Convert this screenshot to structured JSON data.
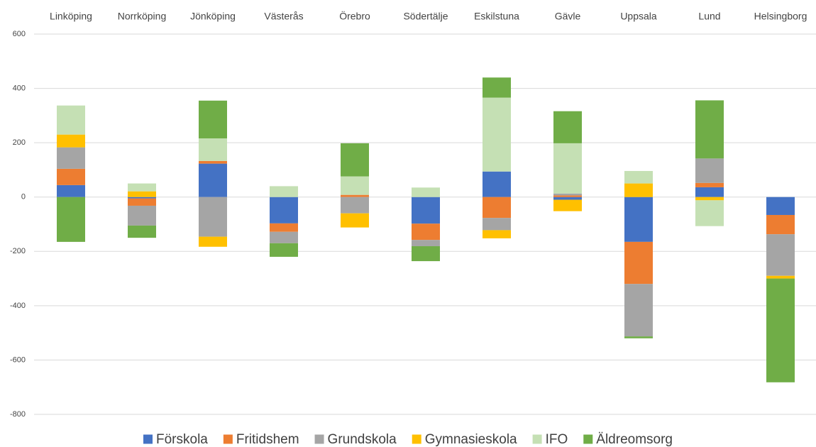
{
  "chart_data": {
    "type": "bar",
    "stacked": true,
    "categories": [
      "Linköping",
      "Norrköping",
      "Jönköping",
      "Västerås",
      "Örebro",
      "Södertälje",
      "Eskilstuna",
      "Gävle",
      "Uppsala",
      "Lund",
      "Helsingborg"
    ],
    "series": [
      {
        "name": "Förskola",
        "color": "#4472c4",
        "values": [
          44,
          -5,
          123,
          -97,
          0,
          -98,
          94,
          -10,
          -165,
          36,
          -66
        ]
      },
      {
        "name": "Fritidshem",
        "color": "#ed7d31",
        "values": [
          60,
          -27,
          10,
          -31,
          8,
          -60,
          -77,
          6,
          -155,
          16,
          -71
        ]
      },
      {
        "name": "Grundskola",
        "color": "#a5a5a5",
        "values": [
          79,
          -73,
          -146,
          -42,
          -60,
          -23,
          -45,
          7,
          -193,
          90,
          -153
        ]
      },
      {
        "name": "Gymnasieskola",
        "color": "#ffc000",
        "values": [
          47,
          21,
          -37,
          0,
          -52,
          0,
          -30,
          -42,
          50,
          -12,
          -10
        ]
      },
      {
        "name": "IFO",
        "color": "#c5e0b4",
        "values": [
          107,
          29,
          83,
          40,
          68,
          35,
          272,
          185,
          46,
          -95,
          0
        ]
      },
      {
        "name": "Äldreomsorg",
        "color": "#70ad47",
        "values": [
          -165,
          -45,
          139,
          -50,
          122,
          -55,
          74,
          118,
          -7,
          214,
          -382
        ]
      }
    ],
    "ylim": [
      -800,
      600
    ],
    "yticks": [
      -800,
      -600,
      -400,
      -200,
      0,
      200,
      400,
      600
    ],
    "grid": true,
    "legend": "bottom"
  }
}
